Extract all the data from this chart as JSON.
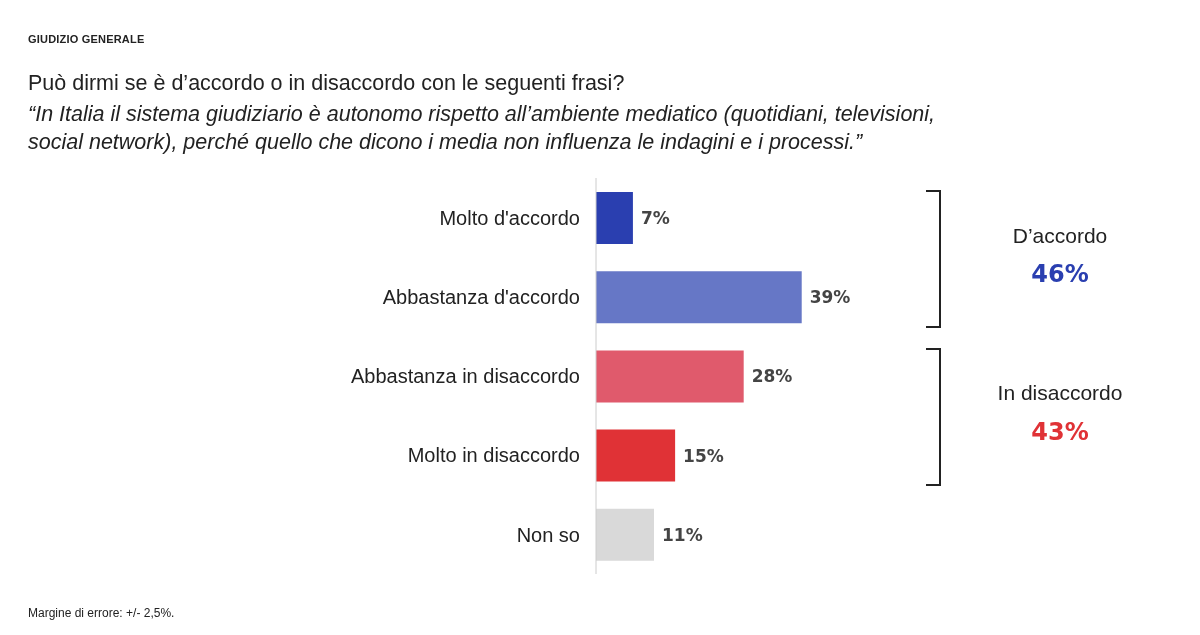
{
  "chart_data": {
    "type": "bar",
    "orientation": "horizontal",
    "title": "Può dirmi se è d’accordo o in disaccordo con le seguenti frasi?",
    "subtitle": "“In Italia il sistema giudiziario è autonomo rispetto all’ambiente mediatico (quotidiani, televisioni, social network), perché quello che dicono i media non influenza le indagini e i processi.”",
    "categories": [
      "Molto d'accordo",
      "Abbastanza d'accordo",
      "Abbastanza in disaccordo",
      "Molto in disaccordo",
      "Non so"
    ],
    "values": [
      7,
      39,
      28,
      15,
      11
    ],
    "colors": [
      "#2a3fb0",
      "#6677c6",
      "#e05a6c",
      "#e03236",
      "#d9d9d9"
    ],
    "annotations": [
      "GIUDIZIO GENERALE",
      "D’accordo",
      "46%",
      "In disaccordo",
      "43%",
      "Margine di errore: +/- 2,5%."
    ],
    "value_labels": [
      "7%",
      "39%",
      "28%",
      "15%",
      "11%"
    ]
  }
}
